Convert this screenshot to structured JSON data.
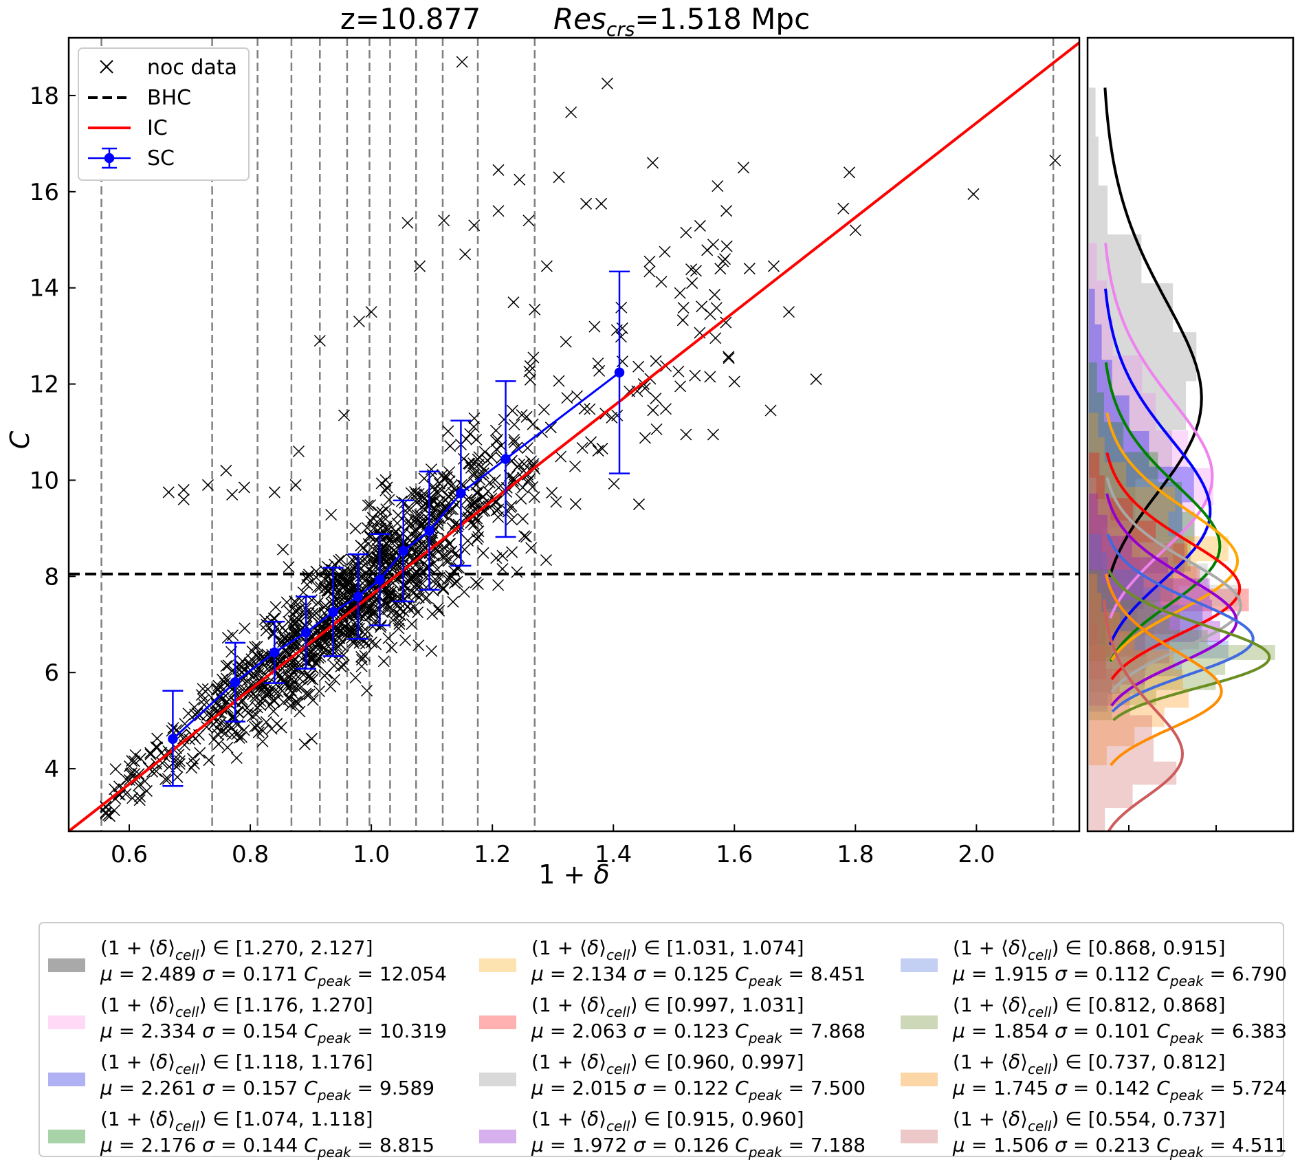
{
  "title": {
    "redshift": "z=10.877",
    "res_name": "Res",
    "res_sub": "crs",
    "res_value": "=1.518 Mpc"
  },
  "legend": {
    "noc": "noc data",
    "bhc": "BHC",
    "ic": "IC",
    "sc": "SC"
  },
  "colors": {
    "ic": "#ff0000",
    "sc": "#0000ff",
    "bhc": "#000000",
    "bins": "#808080"
  },
  "chart_data": {
    "type": "scatter",
    "xlabel_main": "1 + ",
    "xlabel_sym": "δ",
    "ylabel": "C",
    "xlim": [
      0.5,
      2.17
    ],
    "ylim": [
      2.7,
      19.2
    ],
    "xticks": [
      "0.6",
      "0.8",
      "1.0",
      "1.2",
      "1.4",
      "1.6",
      "1.8",
      "2.0"
    ],
    "xtick_values": [
      0.6,
      0.8,
      1.0,
      1.2,
      1.4,
      1.6,
      1.8,
      2.0
    ],
    "yticks": [
      "4",
      "6",
      "8",
      "10",
      "12",
      "14",
      "16",
      "18"
    ],
    "ytick_values": [
      4,
      6,
      8,
      10,
      12,
      14,
      16,
      18
    ],
    "bhc_value": 8.05,
    "ic_line": [
      [
        0.5,
        2.7
      ],
      [
        2.17,
        19.1
      ]
    ],
    "bin_edges": [
      0.554,
      0.737,
      0.812,
      0.868,
      0.915,
      0.96,
      0.997,
      1.031,
      1.074,
      1.118,
      1.176,
      1.27,
      2.127
    ],
    "sc": [
      {
        "x": 0.672,
        "y": 4.62,
        "lo": 3.64,
        "hi": 5.62
      },
      {
        "x": 0.775,
        "y": 5.8,
        "lo": 4.98,
        "hi": 6.62
      },
      {
        "x": 0.84,
        "y": 6.42,
        "lo": 5.78,
        "hi": 7.06
      },
      {
        "x": 0.892,
        "y": 6.83,
        "lo": 6.08,
        "hi": 7.58
      },
      {
        "x": 0.937,
        "y": 7.26,
        "lo": 6.34,
        "hi": 8.18
      },
      {
        "x": 0.978,
        "y": 7.58,
        "lo": 6.7,
        "hi": 8.46
      },
      {
        "x": 1.014,
        "y": 7.93,
        "lo": 6.98,
        "hi": 8.88
      },
      {
        "x": 1.053,
        "y": 8.53,
        "lo": 7.48,
        "hi": 9.58
      },
      {
        "x": 1.096,
        "y": 8.95,
        "lo": 7.72,
        "hi": 10.18
      },
      {
        "x": 1.148,
        "y": 9.73,
        "lo": 8.22,
        "hi": 11.24
      },
      {
        "x": 1.222,
        "y": 10.44,
        "lo": 8.82,
        "hi": 12.06
      },
      {
        "x": 1.41,
        "y": 12.24,
        "lo": 10.14,
        "hi": 14.34
      }
    ],
    "outliers": [
      [
        1.15,
        18.7
      ],
      [
        1.39,
        18.25
      ],
      [
        1.33,
        17.65
      ],
      [
        2.13,
        16.65
      ],
      [
        1.465,
        16.6
      ],
      [
        1.615,
        16.5
      ],
      [
        1.79,
        16.4
      ],
      [
        1.995,
        15.95
      ],
      [
        1.78,
        15.65
      ],
      [
        1.21,
        16.45
      ],
      [
        1.245,
        16.25
      ],
      [
        1.31,
        16.3
      ],
      [
        1.355,
        15.75
      ],
      [
        1.38,
        15.75
      ],
      [
        1.52,
        15.15
      ],
      [
        1.565,
        14.9
      ],
      [
        1.625,
        14.4
      ],
      [
        1.665,
        14.45
      ],
      [
        1.69,
        13.5
      ],
      [
        1.735,
        12.1
      ],
      [
        1.6,
        12.05
      ],
      [
        1.66,
        11.45
      ],
      [
        1.565,
        10.95
      ],
      [
        1.52,
        10.95
      ],
      [
        1.8,
        15.2
      ],
      [
        1.53,
        14.1
      ],
      [
        1.56,
        13.45
      ],
      [
        1.485,
        14.75
      ],
      [
        1.46,
        14.55
      ],
      [
        0.665,
        9.75
      ],
      [
        0.69,
        9.8
      ],
      [
        0.69,
        9.6
      ],
      [
        0.73,
        9.9
      ],
      [
        0.76,
        10.2
      ],
      [
        0.77,
        9.7
      ],
      [
        0.79,
        9.85
      ],
      [
        0.875,
        9.9
      ],
      [
        0.88,
        10.6
      ],
      [
        0.84,
        9.75
      ],
      [
        0.915,
        12.9
      ],
      [
        0.955,
        11.35
      ],
      [
        1.08,
        14.45
      ],
      [
        1.12,
        15.4
      ],
      [
        1.06,
        15.35
      ],
      [
        1.0,
        13.5
      ],
      [
        0.98,
        13.3
      ],
      [
        1.29,
        14.45
      ],
      [
        1.27,
        13.55
      ],
      [
        1.45,
        12.0
      ],
      [
        1.47,
        11.7
      ],
      [
        1.21,
        15.6
      ],
      [
        1.17,
        15.3
      ],
      [
        1.155,
        14.7
      ],
      [
        1.235,
        13.7
      ],
      [
        1.26,
        15.4
      ]
    ],
    "rh_hist": [
      {
        "color": "#808080",
        "mu": 2.489,
        "sigma": 0.171
      },
      {
        "color": "#ee82ee",
        "mu": 2.334,
        "sigma": 0.154
      },
      {
        "color": "#0000ff",
        "mu": 2.261,
        "sigma": 0.157
      },
      {
        "color": "#008000",
        "mu": 2.176,
        "sigma": 0.144
      },
      {
        "color": "#ffa500",
        "mu": 2.134,
        "sigma": 0.125
      },
      {
        "color": "#ff0000",
        "mu": 2.063,
        "sigma": 0.123
      },
      {
        "color": "#a9a9a9",
        "mu": 2.015,
        "sigma": 0.122
      },
      {
        "color": "#9400d3",
        "mu": 1.972,
        "sigma": 0.126
      },
      {
        "color": "#4169e1",
        "mu": 1.915,
        "sigma": 0.112
      },
      {
        "color": "#6b8e23",
        "mu": 1.854,
        "sigma": 0.101
      },
      {
        "color": "#ff8c00",
        "mu": 1.745,
        "sigma": 0.142
      },
      {
        "color": "#cd5c5c",
        "mu": 1.506,
        "sigma": 0.213
      }
    ],
    "rh_curve_colors": [
      "#000000",
      "#ee82ee",
      "#0000ff",
      "#008000",
      "#ffa500",
      "#ff0000",
      "#a9a9a9",
      "#9400d3",
      "#4169e1",
      "#6b8e23",
      "#ff8c00",
      "#cd5c5c"
    ]
  },
  "bottom_legend": [
    {
      "color": "#a9a9a9",
      "range": "[1.270, 2.127]",
      "mu": "2.489",
      "sigma": "0.171",
      "peak": "12.054"
    },
    {
      "color": "#ffd9f5",
      "range": "[1.176, 1.270]",
      "mu": "2.334",
      "sigma": "0.154",
      "peak": "10.319"
    },
    {
      "color": "#b0b0f5",
      "range": "[1.118, 1.176]",
      "mu": "2.261",
      "sigma": "0.157",
      "peak": "9.589"
    },
    {
      "color": "#a8d3a8",
      "range": "[1.074, 1.118]",
      "mu": "2.176",
      "sigma": "0.144",
      "peak": "8.815"
    },
    {
      "color": "#fde3b0",
      "range": "[1.031, 1.074]",
      "mu": "2.134",
      "sigma": "0.125",
      "peak": "8.451"
    },
    {
      "color": "#ffb0b0",
      "range": "[0.997, 1.031]",
      "mu": "2.063",
      "sigma": "0.123",
      "peak": "7.868"
    },
    {
      "color": "#d9d9d9",
      "range": "[0.960, 0.997]",
      "mu": "2.015",
      "sigma": "0.122",
      "peak": "7.500"
    },
    {
      "color": "#d7b0ee",
      "range": "[0.915, 0.960]",
      "mu": "1.972",
      "sigma": "0.126",
      "peak": "7.188"
    },
    {
      "color": "#c4d0f3",
      "range": "[0.868, 0.915]",
      "mu": "1.915",
      "sigma": "0.112",
      "peak": "6.790"
    },
    {
      "color": "#cdd8b8",
      "range": "[0.812, 0.868]",
      "mu": "1.854",
      "sigma": "0.101",
      "peak": "6.383"
    },
    {
      "color": "#fdd6a8",
      "range": "[0.737, 0.812]",
      "mu": "1.745",
      "sigma": "0.142",
      "peak": "5.724"
    },
    {
      "color": "#ecc8c8",
      "range": "[0.554, 0.737]",
      "mu": "1.506",
      "sigma": "0.213",
      "peak": "4.511"
    }
  ]
}
